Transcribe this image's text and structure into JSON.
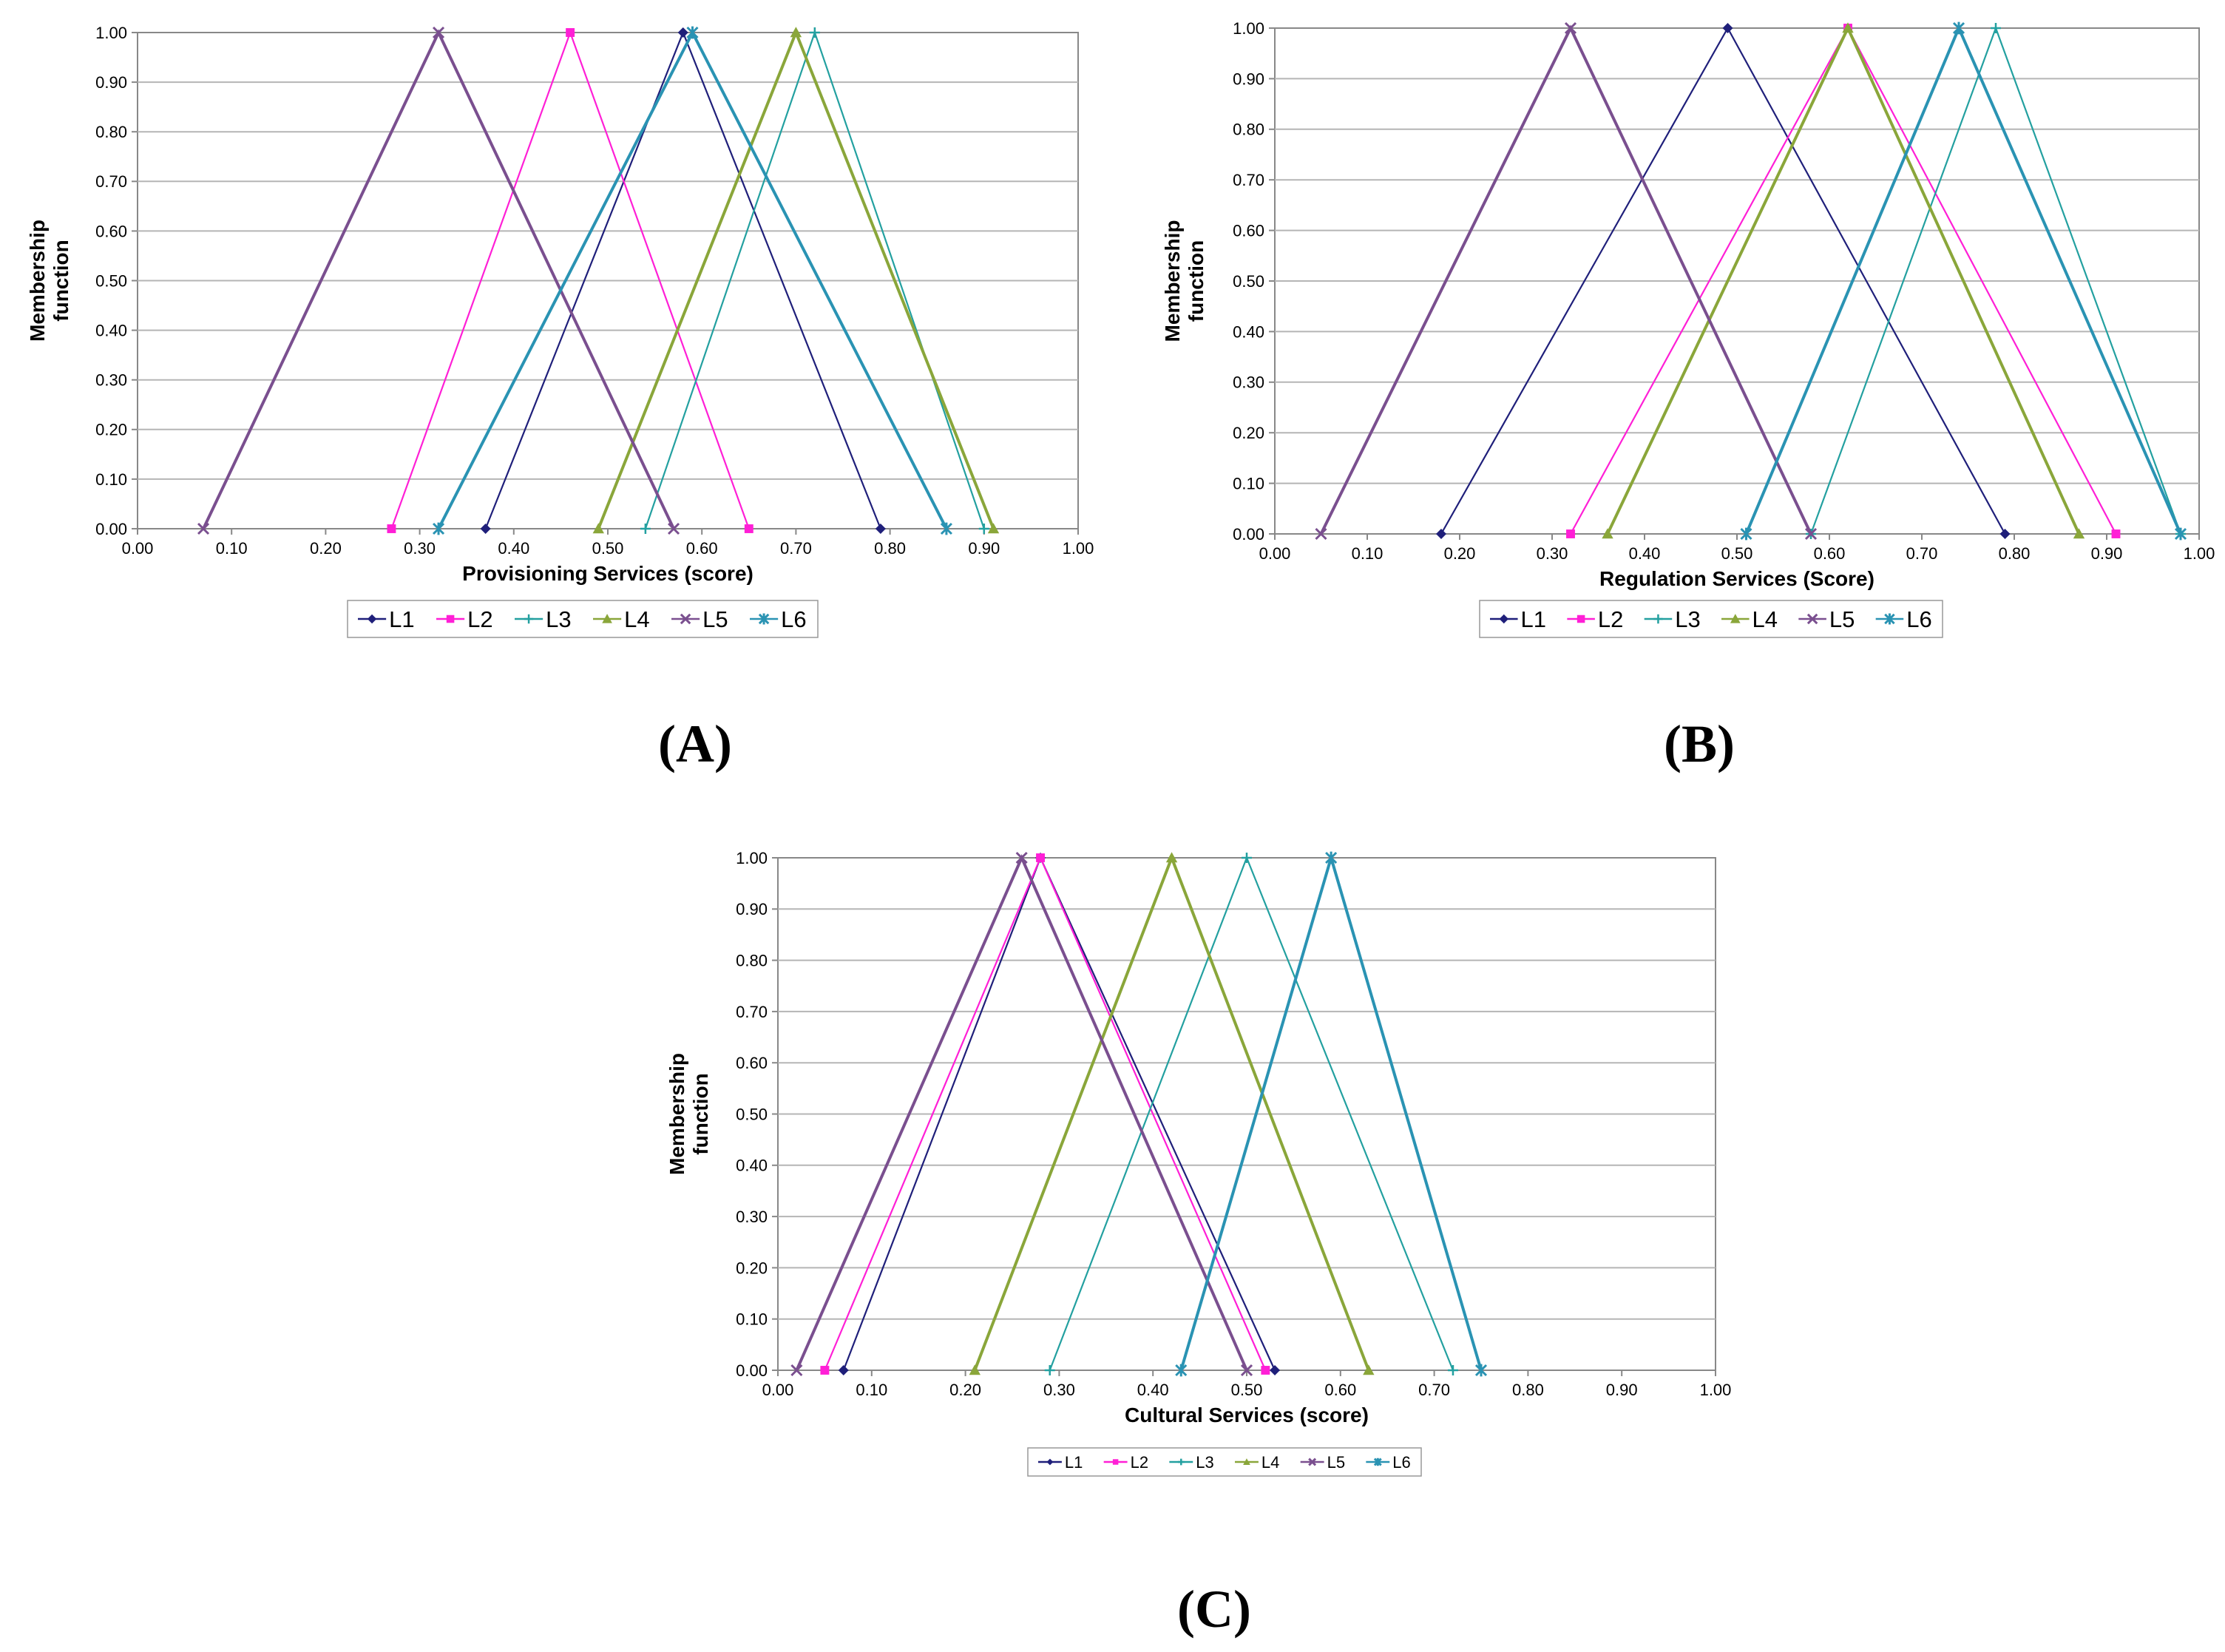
{
  "colors": {
    "L1": "#1f1f7a",
    "L2": "#ff1fd6",
    "L3": "#23a0a0",
    "L4": "#8aa63a",
    "L5": "#7a4f8f",
    "L6": "#2a93b3",
    "grid": "#b5b5b5",
    "axis": "#888888"
  },
  "chart_data": [
    {
      "panel": "A",
      "panel_label": "(A)",
      "type": "line",
      "title": "",
      "xlabel": "Provisioning  Services (score)",
      "ylabel_lines": [
        "Membership",
        "function"
      ],
      "xlim": [
        0,
        1
      ],
      "ylim": [
        0,
        1
      ],
      "x_ticks": [
        "0.00",
        "0.10",
        "0.20",
        "0.30",
        "0.40",
        "0.50",
        "0.60",
        "0.70",
        "0.80",
        "0.90",
        "1.00"
      ],
      "y_ticks": [
        "0.00",
        "0.10",
        "0.20",
        "0.30",
        "0.40",
        "0.50",
        "0.60",
        "0.70",
        "0.80",
        "0.90",
        "1.00"
      ],
      "grid": true,
      "legend_position": "bottom",
      "series": [
        {
          "name": "L1",
          "x": [
            0.37,
            0.58,
            0.79
          ],
          "y": [
            0,
            1,
            0
          ]
        },
        {
          "name": "L2",
          "x": [
            0.27,
            0.46,
            0.65
          ],
          "y": [
            0,
            1,
            0
          ]
        },
        {
          "name": "L3",
          "x": [
            0.54,
            0.72,
            0.9
          ],
          "y": [
            0,
            1,
            0
          ]
        },
        {
          "name": "L4",
          "x": [
            0.49,
            0.7,
            0.91
          ],
          "y": [
            0,
            1,
            0
          ]
        },
        {
          "name": "L5",
          "x": [
            0.07,
            0.32,
            0.57
          ],
          "y": [
            0,
            1,
            0
          ]
        },
        {
          "name": "L6",
          "x": [
            0.32,
            0.59,
            0.86
          ],
          "y": [
            0,
            1,
            0
          ]
        }
      ]
    },
    {
      "panel": "B",
      "panel_label": "(B)",
      "type": "line",
      "title": "",
      "xlabel": "Regulation Services (Score)",
      "ylabel_lines": [
        "Membership",
        "function"
      ],
      "xlim": [
        0,
        1
      ],
      "ylim": [
        0,
        1
      ],
      "x_ticks": [
        "0.00",
        "0.10",
        "0.20",
        "0.30",
        "0.40",
        "0.50",
        "0.60",
        "0.70",
        "0.80",
        "0.90",
        "1.00"
      ],
      "y_ticks": [
        "0.00",
        "0.10",
        "0.20",
        "0.30",
        "0.40",
        "0.50",
        "0.60",
        "0.70",
        "0.80",
        "0.90",
        "1.00"
      ],
      "grid": true,
      "legend_position": "bottom",
      "series": [
        {
          "name": "L1",
          "x": [
            0.18,
            0.49,
            0.79
          ],
          "y": [
            0,
            1,
            0
          ]
        },
        {
          "name": "L2",
          "x": [
            0.32,
            0.62,
            0.91
          ],
          "y": [
            0,
            1,
            0
          ]
        },
        {
          "name": "L3",
          "x": [
            0.58,
            0.78,
            0.98
          ],
          "y": [
            0,
            1,
            0
          ]
        },
        {
          "name": "L4",
          "x": [
            0.36,
            0.62,
            0.87
          ],
          "y": [
            0,
            1,
            0
          ]
        },
        {
          "name": "L5",
          "x": [
            0.05,
            0.32,
            0.58
          ],
          "y": [
            0,
            1,
            0
          ]
        },
        {
          "name": "L6",
          "x": [
            0.51,
            0.74,
            0.98
          ],
          "y": [
            0,
            1,
            0
          ]
        }
      ]
    },
    {
      "panel": "C",
      "panel_label": "(C)",
      "type": "line",
      "title": "",
      "xlabel": "Cultural Services (score)",
      "ylabel_lines": [
        "Membership",
        "function"
      ],
      "xlim": [
        0,
        1
      ],
      "ylim": [
        0,
        1
      ],
      "x_ticks": [
        "0.00",
        "0.10",
        "0.20",
        "0.30",
        "0.40",
        "0.50",
        "0.60",
        "0.70",
        "0.80",
        "0.90",
        "1.00"
      ],
      "y_ticks": [
        "0.00",
        "0.10",
        "0.20",
        "0.30",
        "0.40",
        "0.50",
        "0.60",
        "0.70",
        "0.80",
        "0.90",
        "1.00"
      ],
      "grid": true,
      "legend_position": "bottom",
      "series": [
        {
          "name": "L1",
          "x": [
            0.07,
            0.28,
            0.53
          ],
          "y": [
            0,
            1,
            0
          ]
        },
        {
          "name": "L2",
          "x": [
            0.05,
            0.28,
            0.52
          ],
          "y": [
            0,
            1,
            0
          ]
        },
        {
          "name": "L3",
          "x": [
            0.29,
            0.5,
            0.72
          ],
          "y": [
            0,
            1,
            0
          ]
        },
        {
          "name": "L4",
          "x": [
            0.21,
            0.42,
            0.63
          ],
          "y": [
            0,
            1,
            0
          ]
        },
        {
          "name": "L5",
          "x": [
            0.02,
            0.26,
            0.5
          ],
          "y": [
            0,
            1,
            0
          ]
        },
        {
          "name": "L6",
          "x": [
            0.43,
            0.59,
            0.75
          ],
          "y": [
            0,
            1,
            0
          ]
        }
      ]
    }
  ]
}
